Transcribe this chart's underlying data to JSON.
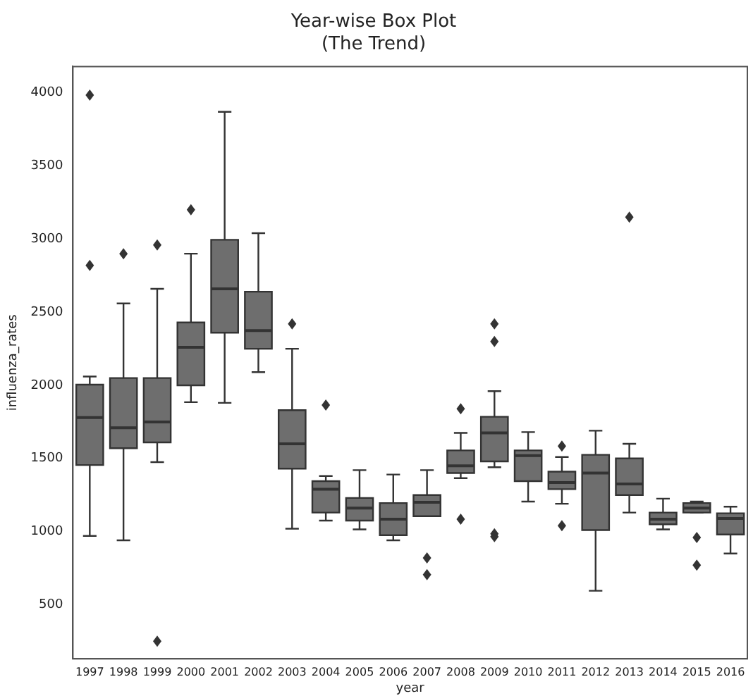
{
  "chart_data": {
    "type": "box",
    "title": "Year-wise Box Plot",
    "subtitle": "(The Trend)",
    "xlabel": "year",
    "ylabel": "influenza_rates",
    "categories": [
      "1997",
      "1998",
      "1999",
      "2000",
      "2001",
      "2002",
      "2003",
      "2004",
      "2005",
      "2006",
      "2007",
      "2008",
      "2009",
      "2010",
      "2011",
      "2012",
      "2013",
      "2014",
      "2015",
      "2016"
    ],
    "ylim": [
      130,
      4180
    ],
    "yticks": [
      500,
      1000,
      1500,
      2000,
      2500,
      3000,
      3500,
      4000
    ],
    "grid": false,
    "legend": false,
    "series": [
      {
        "color": "#6e6e6e",
        "boxes": [
          {
            "low": 970,
            "q1": 1455,
            "median": 1780,
            "q3": 2005,
            "high": 2060,
            "outliers": [
              2820,
              3985
            ]
          },
          {
            "low": 940,
            "q1": 1570,
            "median": 1710,
            "q3": 2050,
            "high": 2560,
            "outliers": [
              2900
            ]
          },
          {
            "low": 1475,
            "q1": 1610,
            "median": 1750,
            "q3": 2050,
            "high": 2660,
            "outliers": [
              2960,
              250
            ]
          },
          {
            "low": 1885,
            "q1": 2000,
            "median": 2260,
            "q3": 2430,
            "high": 2900,
            "outliers": [
              3200
            ]
          },
          {
            "low": 1880,
            "q1": 2360,
            "median": 2660,
            "q3": 2995,
            "high": 3870
          },
          {
            "low": 2090,
            "q1": 2250,
            "median": 2375,
            "q3": 2640,
            "high": 3040
          },
          {
            "low": 1020,
            "q1": 1430,
            "median": 1600,
            "q3": 1830,
            "high": 2250,
            "outliers": [
              2420
            ]
          },
          {
            "low": 1075,
            "q1": 1130,
            "median": 1290,
            "q3": 1345,
            "high": 1380,
            "outliers": [
              1865
            ]
          },
          {
            "low": 1015,
            "q1": 1075,
            "median": 1160,
            "q3": 1230,
            "high": 1420
          },
          {
            "low": 940,
            "q1": 975,
            "median": 1085,
            "q3": 1195,
            "high": 1390
          },
          {
            "low": 1105,
            "q1": 1105,
            "median": 1200,
            "q3": 1250,
            "high": 1420,
            "outliers": [
              820,
              705
            ]
          },
          {
            "low": 1365,
            "q1": 1400,
            "median": 1450,
            "q3": 1555,
            "high": 1675,
            "outliers": [
              1840,
              1085
            ]
          },
          {
            "low": 1440,
            "q1": 1480,
            "median": 1675,
            "q3": 1785,
            "high": 1960,
            "outliers": [
              2420,
              2300,
              985,
              965
            ]
          },
          {
            "low": 1205,
            "q1": 1345,
            "median": 1520,
            "q3": 1555,
            "high": 1680
          },
          {
            "low": 1190,
            "q1": 1290,
            "median": 1335,
            "q3": 1410,
            "high": 1510,
            "outliers": [
              1585,
              1040
            ]
          },
          {
            "low": 595,
            "q1": 1010,
            "median": 1400,
            "q3": 1525,
            "high": 1690
          },
          {
            "low": 1130,
            "q1": 1250,
            "median": 1325,
            "q3": 1500,
            "high": 1600,
            "outliers": [
              3150
            ]
          },
          {
            "low": 1015,
            "q1": 1050,
            "median": 1085,
            "q3": 1130,
            "high": 1225
          },
          {
            "low": 1130,
            "q1": 1130,
            "median": 1160,
            "q3": 1195,
            "high": 1205,
            "outliers": [
              960,
              770
            ]
          },
          {
            "low": 850,
            "q1": 980,
            "median": 1090,
            "q3": 1125,
            "high": 1170
          }
        ]
      }
    ]
  }
}
